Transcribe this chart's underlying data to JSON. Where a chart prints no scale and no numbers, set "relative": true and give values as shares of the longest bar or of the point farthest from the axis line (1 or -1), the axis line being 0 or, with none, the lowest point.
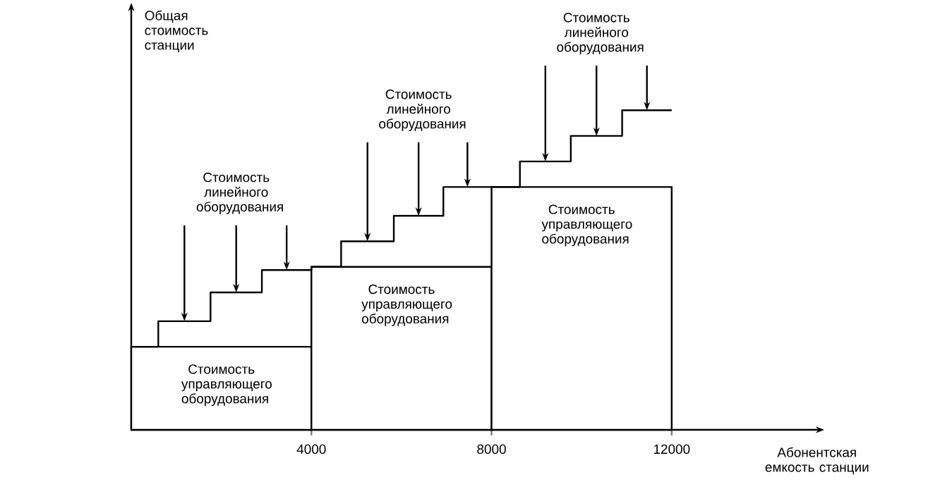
{
  "chart_data": {
    "type": "step",
    "relative": true,
    "xlabel": "Абонентская емкость станции",
    "ylabel": "Общая стоимость станции",
    "xlim": [
      0,
      15200
    ],
    "xticks": [
      4000,
      8000,
      12000
    ],
    "series": [
      {
        "type": "bar",
        "color": "#000000",
        "x": [
          2000,
          6000,
          10000
        ],
        "values": [
          0.26,
          0.51,
          0.76
        ]
      },
      {
        "color": "#000000",
        "x": [
          0,
          600,
          1760,
          2900,
          4000,
          4660,
          5830,
          6930,
          8000,
          8630,
          9760,
          10900,
          12000
        ],
        "values": [
          0.26,
          0.34,
          0.43,
          0.5,
          0.51,
          0.59,
          0.67,
          0.76,
          0.76,
          0.84,
          0.92,
          1.0,
          1.0
        ]
      }
    ],
    "annotations": [
      {
        "text": "Стоимость управляющего оборудования",
        "x": 2000,
        "y": 0.26
      },
      {
        "text": "Стоимость управляющего оборудования",
        "x": 6000,
        "y": 0.51
      },
      {
        "text": "Стоимость управляющего оборудования",
        "x": 10000,
        "y": 0.76
      },
      {
        "text": "Стоимость линейного оборудования",
        "x": 2330,
        "y": 0.43
      },
      {
        "text": "Стоимость линейного оборудования",
        "x": 6380,
        "y": 0.67
      },
      {
        "text": "Стоимость линейного оборудования",
        "x": 10330,
        "y": 0.92
      }
    ]
  }
}
